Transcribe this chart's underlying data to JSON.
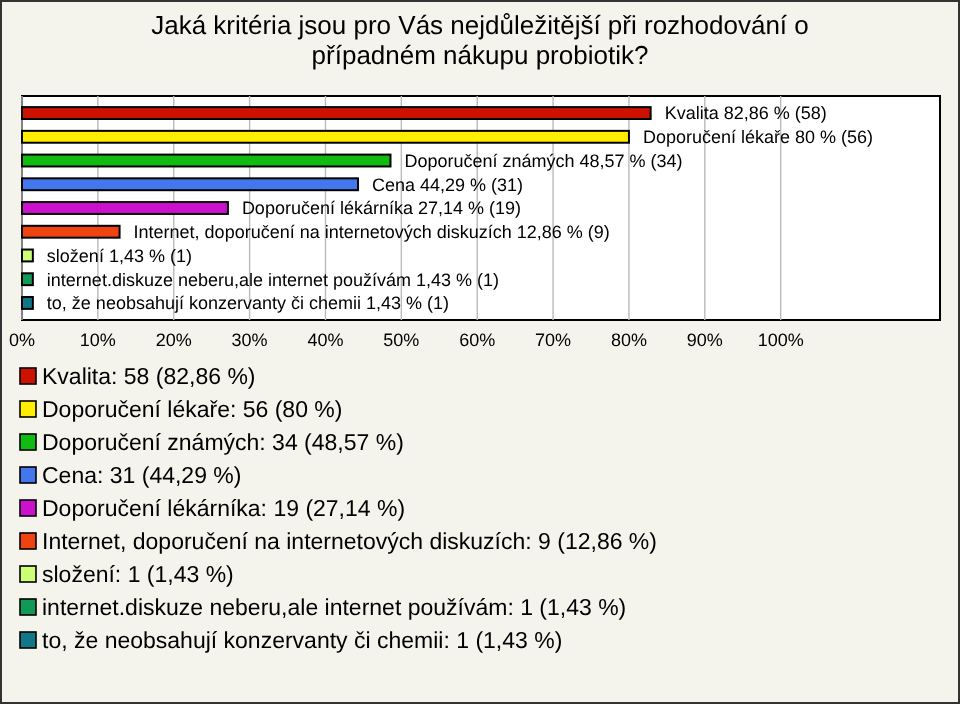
{
  "chart_data": {
    "type": "bar",
    "orientation": "horizontal",
    "title": "Jaká kritéria jsou pro Vás nejdůležitější při rozhodování o případném nákupu probiotik?",
    "categories": [
      "Kvalita",
      "Doporučení lékaře",
      "Doporučení známých",
      "Cena",
      "Doporučení lékárníka",
      "Internet, doporučení na internetových diskuzích",
      "složení",
      "internet.diskuze neberu,ale internet používám",
      "to, že neobsahují konzervanty či chemii"
    ],
    "values": [
      82.86,
      80,
      48.57,
      44.29,
      27.14,
      12.86,
      1.43,
      1.43,
      1.43
    ],
    "colors": [
      "#cc1100",
      "#ffee00",
      "#11bb11",
      "#4477ee",
      "#cc11cc",
      "#ee4411",
      "#ccff77",
      "#119955",
      "#117788"
    ],
    "value_labels": [
      "82,86 % (58)",
      "80 % (56)",
      "48,57 % (34)",
      "44,29 % (31)",
      "27,14 % (19)",
      "12,86 % (9)",
      "1,43 % (1)",
      "1,43 % (1)",
      "1,43 % (1)"
    ],
    "xlim": [
      0,
      121
    ],
    "xticks": [
      {
        "value": 0,
        "label": "0%"
      },
      {
        "value": 10,
        "label": "10%"
      },
      {
        "value": 20,
        "label": "20%"
      },
      {
        "value": 30,
        "label": "30%"
      },
      {
        "value": 40,
        "label": "40%"
      },
      {
        "value": 50,
        "label": "50%"
      },
      {
        "value": 60,
        "label": "60%"
      },
      {
        "value": 70,
        "label": "70%"
      },
      {
        "value": 80,
        "label": "80%"
      },
      {
        "value": 90,
        "label": "90%"
      },
      {
        "value": 100,
        "label": "100%"
      }
    ],
    "grid": "x",
    "annotations": [
      "Kvalita: 58 (82,86 %)",
      "Doporučení lékaře: 56 (80 %)",
      "Doporučení známých: 34 (48,57 %)",
      "Cena: 31 (44,29 %)",
      "Doporučení lékárníka: 19 (27,14 %)",
      "Internet, doporučení na internetových diskuzích: 9 (12,86 %)",
      "složení: 1 (1,43 %)",
      "internet.diskuze neberu,ale internet používám: 1 (1,43 %)",
      "to, že neobsahují konzervanty či chemii: 1 (1,43 %)"
    ]
  }
}
